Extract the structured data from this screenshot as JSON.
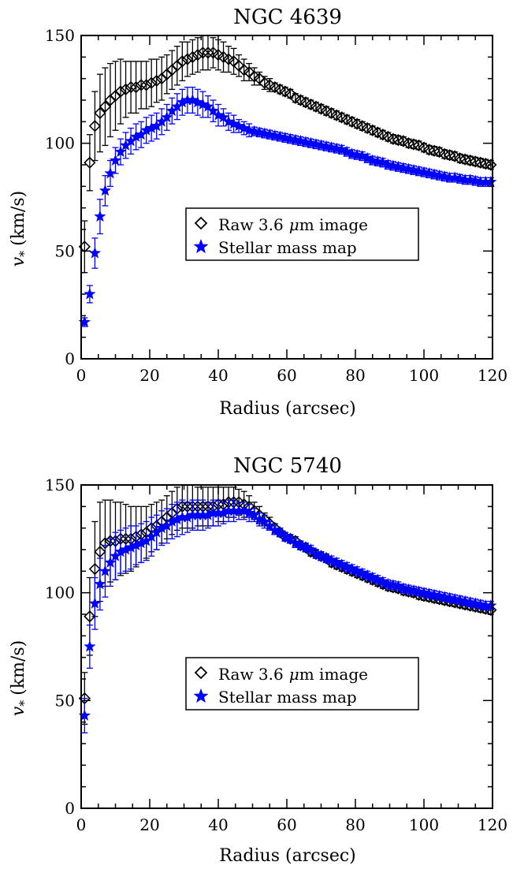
{
  "chart_data": [
    {
      "type": "scatter",
      "title": "NGC 4639",
      "xlabel": "Radius (arcsec)",
      "ylabel": "v* (km/s)",
      "ylabel_symbol": "v",
      "ylabel_subscript": "*",
      "ylabel_unit": "(km/s)",
      "xlim": [
        0,
        120
      ],
      "ylim": [
        0,
        150
      ],
      "xticks": [
        "0",
        "20",
        "40",
        "60",
        "80",
        "100",
        "120"
      ],
      "yticks": [
        "0",
        "50",
        "100",
        "150"
      ],
      "legend_placement": "center",
      "legend": {
        "raw_label": "Raw 3.6 μm image",
        "raw_prefix": "Raw 3.6",
        "raw_greek": "μ",
        "raw_suffix": "m image",
        "stellar_label": "Stellar mass map"
      },
      "series": [
        {
          "name": "Raw 3.6 μm image",
          "marker": "diamond",
          "color": "#000000",
          "x": [
            1,
            2.5,
            4,
            5.5,
            7,
            8.5,
            10,
            11.5,
            13,
            14.5,
            16,
            17.5,
            19,
            20.5,
            22,
            23.5,
            25,
            26.5,
            28,
            29.5,
            31,
            32.5,
            34,
            35.5,
            37,
            38.5,
            40,
            41.5,
            43,
            44.5,
            46,
            47.5,
            49,
            50.5,
            52,
            53.5,
            55,
            56.5,
            58,
            59.5,
            61,
            62.5,
            64,
            65.5,
            67,
            68.5,
            70,
            71.5,
            73,
            74.5,
            76,
            77.5,
            79,
            80.5,
            82,
            83.5,
            85,
            86.5,
            88,
            89.5,
            91,
            92.5,
            94,
            95.5,
            97,
            98.5,
            100,
            101.5,
            103,
            104.5,
            106,
            107.5,
            109,
            110.5,
            112,
            113.5,
            115,
            116.5,
            118,
            119.5
          ],
          "y": [
            52,
            91,
            108,
            114,
            117,
            120,
            122,
            124,
            125,
            126,
            126,
            127,
            127,
            128,
            129,
            130,
            132,
            134,
            136,
            138,
            139,
            140,
            141,
            142,
            142,
            142,
            141,
            140,
            139,
            138,
            136,
            134,
            133,
            131,
            130,
            128,
            127,
            126,
            125,
            124,
            123,
            121,
            120,
            119,
            118,
            117,
            116,
            115,
            114,
            113,
            112,
            111,
            110,
            109,
            108,
            107,
            106,
            105,
            104,
            103,
            102,
            101.5,
            101,
            100,
            99.5,
            99,
            98,
            97,
            96.5,
            96,
            95,
            94.5,
            94,
            93,
            92.5,
            92,
            91.5,
            91,
            90.5,
            90
          ],
          "err": [
            12,
            13,
            16,
            18,
            18,
            17,
            16,
            15,
            13,
            12,
            12,
            11,
            11,
            11,
            10,
            10,
            9,
            9,
            9,
            9,
            8,
            8,
            8,
            8,
            8,
            7,
            7,
            7,
            6,
            6,
            5,
            5,
            4,
            4,
            3,
            3,
            3,
            2,
            2,
            2,
            2,
            2,
            2,
            2,
            2,
            2,
            2,
            2,
            2,
            2,
            2,
            2,
            2,
            2,
            2,
            2,
            2,
            2,
            2,
            2,
            2,
            2,
            2,
            2,
            2,
            2,
            2,
            2,
            2,
            2,
            2,
            2,
            2,
            2,
            2,
            2,
            2,
            2,
            2,
            2
          ]
        },
        {
          "name": "Stellar mass map",
          "marker": "star",
          "color": "#0000ff",
          "x": [
            1,
            2.5,
            4,
            5.5,
            7,
            8.5,
            10,
            11.5,
            13,
            14.5,
            16,
            17.5,
            19,
            20.5,
            22,
            23.5,
            25,
            26.5,
            28,
            29.5,
            31,
            32.5,
            34,
            35.5,
            37,
            38.5,
            40,
            41.5,
            43,
            44.5,
            46,
            47.5,
            49,
            50.5,
            52,
            53.5,
            55,
            56.5,
            58,
            59.5,
            61,
            62.5,
            64,
            65.5,
            67,
            68.5,
            70,
            71.5,
            73,
            74.5,
            76,
            77.5,
            79,
            80.5,
            82,
            83.5,
            85,
            86.5,
            88,
            89.5,
            91,
            92.5,
            94,
            95.5,
            97,
            98.5,
            100,
            101.5,
            103,
            104.5,
            106,
            107.5,
            109,
            110.5,
            112,
            113.5,
            115,
            116.5,
            118,
            119.5
          ],
          "y": [
            17,
            30,
            49,
            66,
            78,
            86,
            92,
            96,
            99,
            101,
            103,
            104,
            106,
            107,
            108,
            110,
            112,
            115,
            117,
            119,
            120,
            120,
            119,
            118,
            117,
            115,
            113,
            112,
            110,
            109,
            108,
            107,
            106,
            105.5,
            105,
            104.5,
            104,
            103.5,
            103,
            102.5,
            102,
            101.5,
            101,
            100.5,
            100,
            99.5,
            99,
            98.5,
            98,
            97.5,
            97,
            96,
            95,
            94.5,
            94,
            93,
            92,
            91.5,
            91,
            90,
            89.5,
            89,
            88.5,
            88,
            87.5,
            87,
            86.5,
            86,
            85.5,
            85,
            84.5,
            84,
            84,
            83.5,
            83,
            83,
            82.5,
            82,
            82,
            82
          ],
          "err": [
            2,
            4,
            7,
            8,
            7,
            6,
            6,
            6,
            6,
            6,
            6,
            6,
            6,
            6,
            6,
            6,
            6,
            6,
            6,
            6,
            6,
            6,
            6,
            6,
            5,
            5,
            5,
            4,
            4,
            4,
            3,
            3,
            3,
            2,
            2,
            2,
            2,
            2,
            2,
            2,
            2,
            2,
            2,
            2,
            2,
            2,
            2,
            2,
            2,
            2,
            2,
            2,
            2,
            2,
            2,
            2,
            2,
            2,
            2,
            2,
            2,
            2,
            2,
            2,
            2,
            2,
            2,
            2,
            2,
            2,
            2,
            2,
            2,
            2,
            2,
            2,
            2,
            2,
            2,
            2
          ]
        }
      ]
    },
    {
      "type": "scatter",
      "title": "NGC 5740",
      "xlabel": "Radius (arcsec)",
      "ylabel": "v* (km/s)",
      "ylabel_symbol": "v",
      "ylabel_subscript": "*",
      "ylabel_unit": "(km/s)",
      "xlim": [
        0,
        120
      ],
      "ylim": [
        0,
        150
      ],
      "xticks": [
        "0",
        "20",
        "40",
        "60",
        "80",
        "100",
        "120"
      ],
      "yticks": [
        "0",
        "50",
        "100",
        "150"
      ],
      "legend_placement": "center",
      "legend": {
        "raw_label": "Raw 3.6 μm image",
        "raw_prefix": "Raw 3.6",
        "raw_greek": "μ",
        "raw_suffix": "m image",
        "stellar_label": "Stellar mass map"
      },
      "series": [
        {
          "name": "Raw 3.6 μm image",
          "marker": "diamond",
          "color": "#000000",
          "x": [
            1,
            2.5,
            4,
            5.5,
            7,
            8.5,
            10,
            11.5,
            13,
            14.5,
            16,
            17.5,
            19,
            20.5,
            22,
            23.5,
            25,
            26.5,
            28,
            29.5,
            31,
            32.5,
            34,
            35.5,
            37,
            38.5,
            40,
            41.5,
            43,
            44.5,
            46,
            47.5,
            49,
            50.5,
            52,
            53.5,
            55,
            56.5,
            58,
            59.5,
            61,
            62.5,
            64,
            65.5,
            67,
            68.5,
            70,
            71.5,
            73,
            74.5,
            76,
            77.5,
            79,
            80.5,
            82,
            83.5,
            85,
            86.5,
            88,
            89.5,
            91,
            92.5,
            94,
            95.5,
            97,
            98.5,
            100,
            101.5,
            103,
            104.5,
            106,
            107.5,
            109,
            110.5,
            112,
            113.5,
            115,
            116.5,
            118,
            119.5
          ],
          "y": [
            51,
            89,
            111,
            119,
            123,
            124,
            124,
            125,
            125,
            125,
            126,
            127,
            128,
            130,
            131,
            133,
            135,
            137,
            139,
            140,
            140,
            140,
            140,
            140,
            140,
            140,
            141,
            141,
            142,
            142,
            142,
            141,
            140,
            138,
            136,
            134,
            132,
            130,
            128,
            126,
            125,
            124,
            122,
            121,
            119,
            118,
            117,
            116,
            114,
            113,
            112,
            111,
            110,
            109,
            108,
            107,
            106,
            105,
            104,
            103,
            102.5,
            102,
            101,
            100.5,
            100,
            99,
            98.5,
            98,
            97.5,
            97,
            96.5,
            96,
            95.5,
            95,
            94.5,
            94,
            93.5,
            93,
            92.5,
            92
          ],
          "err": [
            12,
            18,
            22,
            23,
            20,
            19,
            18,
            17,
            16,
            15,
            14,
            13,
            12,
            11,
            11,
            10,
            10,
            10,
            10,
            10,
            10,
            10,
            9,
            9,
            9,
            9,
            8,
            8,
            7,
            7,
            6,
            6,
            5,
            4,
            4,
            3,
            3,
            2,
            2,
            2,
            2,
            2,
            2,
            2,
            2,
            2,
            2,
            2,
            2,
            2,
            2,
            2,
            2,
            2,
            2,
            2,
            2,
            2,
            2,
            2,
            2,
            2,
            2,
            2,
            2,
            2,
            2,
            2,
            2,
            2,
            2,
            2,
            2,
            2,
            2,
            2,
            2,
            2,
            2,
            2
          ]
        },
        {
          "name": "Stellar mass map",
          "marker": "star",
          "color": "#0000ff",
          "x": [
            1,
            2.5,
            4,
            5.5,
            7,
            8.5,
            10,
            11.5,
            13,
            14.5,
            16,
            17.5,
            19,
            20.5,
            22,
            23.5,
            25,
            26.5,
            28,
            29.5,
            31,
            32.5,
            34,
            35.5,
            37,
            38.5,
            40,
            41.5,
            43,
            44.5,
            46,
            47.5,
            49,
            50.5,
            52,
            53.5,
            55,
            56.5,
            58,
            59.5,
            61,
            62.5,
            64,
            65.5,
            67,
            68.5,
            70,
            71.5,
            73,
            74.5,
            76,
            77.5,
            79,
            80.5,
            82,
            83.5,
            85,
            86.5,
            88,
            89.5,
            91,
            92.5,
            94,
            95.5,
            97,
            98.5,
            100,
            101.5,
            103,
            104.5,
            106,
            107.5,
            109,
            110.5,
            112,
            113.5,
            115,
            116.5,
            118,
            119.5
          ],
          "y": [
            43,
            75,
            95,
            104,
            110,
            114,
            117,
            119,
            120,
            121,
            122,
            123,
            124,
            126,
            128,
            130,
            131,
            133,
            134,
            135,
            135,
            136,
            136,
            136,
            136,
            137,
            137,
            137,
            138,
            138,
            138,
            138,
            137,
            136,
            134,
            133,
            131,
            129,
            128,
            126,
            125,
            123,
            122,
            121,
            120,
            118,
            117,
            116,
            115,
            114,
            113,
            112,
            111,
            110,
            109,
            108,
            107,
            106,
            105,
            104,
            103.5,
            103,
            102,
            101.5,
            101,
            100.5,
            100,
            99.5,
            99,
            98.5,
            98,
            97.5,
            97,
            96.5,
            96,
            95.5,
            95,
            94.5,
            94,
            94
          ],
          "err": [
            8,
            10,
            12,
            12,
            12,
            11,
            11,
            10,
            10,
            10,
            9,
            9,
            9,
            9,
            8,
            8,
            8,
            8,
            8,
            8,
            7,
            7,
            7,
            7,
            6,
            6,
            6,
            5,
            5,
            5,
            4,
            4,
            4,
            3,
            3,
            3,
            2,
            2,
            2,
            2,
            2,
            2,
            2,
            2,
            2,
            2,
            2,
            2,
            2,
            2,
            2,
            2,
            2,
            2,
            2,
            2,
            2,
            2,
            2,
            2,
            2,
            2,
            2,
            2,
            2,
            2,
            2,
            2,
            2,
            2,
            2,
            2,
            2,
            2,
            2,
            2,
            2,
            2,
            2,
            2
          ]
        }
      ]
    }
  ]
}
